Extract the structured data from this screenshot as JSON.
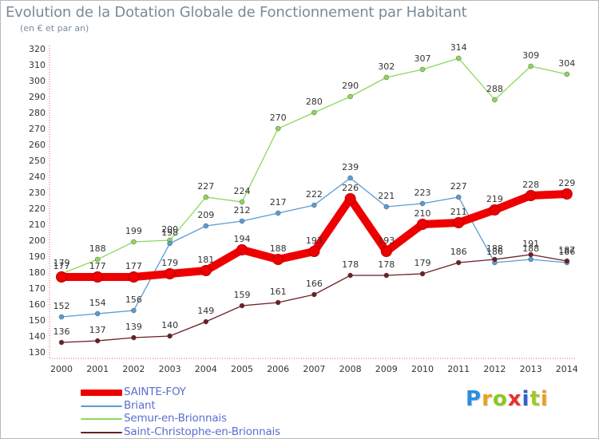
{
  "header": {
    "title": "Evolution de la Dotation Globale de Fonctionnement par Habitant",
    "subtitle": "(en € et par an)"
  },
  "brand": {
    "text": "Proxiti",
    "colors": [
      "#2a8ee0",
      "#e8a020",
      "#8cc820",
      "#e83030",
      "#3060d0",
      "#a0c828",
      "#e8a020"
    ]
  },
  "chart_data": {
    "type": "line",
    "title": "Evolution de la Dotation Globale de Fonctionnement par Habitant",
    "subtitle": "(en € et par an)",
    "xlabel": "",
    "ylabel": "",
    "x": [
      "2000",
      "2001",
      "2002",
      "2003",
      "2004",
      "2005",
      "2006",
      "2007",
      "2008",
      "2009",
      "2010",
      "2011",
      "2012",
      "2013",
      "2014"
    ],
    "ylim": [
      130,
      320
    ],
    "yticks": [
      130,
      140,
      150,
      160,
      170,
      180,
      190,
      200,
      210,
      220,
      230,
      240,
      250,
      260,
      270,
      280,
      290,
      300,
      310,
      320
    ],
    "grid": false,
    "legend_position": "bottom-left",
    "series": [
      {
        "name": "Semur-en-Brionnais",
        "color": "#8cd85a",
        "emphasis": false,
        "values": [
          179,
          188,
          199,
          200,
          227,
          224,
          270,
          280,
          290,
          302,
          307,
          314,
          288,
          309,
          304
        ]
      },
      {
        "name": "Briant",
        "color": "#5b9bd5",
        "emphasis": false,
        "values": [
          152,
          154,
          156,
          198,
          209,
          212,
          217,
          222,
          239,
          221,
          223,
          227,
          186,
          188,
          186
        ]
      },
      {
        "name": "Saint-Christophe-en-Brionnais",
        "color": "#6b1f24",
        "emphasis": false,
        "values": [
          136,
          137,
          139,
          140,
          149,
          159,
          161,
          166,
          178,
          178,
          179,
          186,
          188,
          191,
          187
        ]
      },
      {
        "name": "SAINTE-FOY",
        "color": "#ee0000",
        "emphasis": true,
        "values": [
          177,
          177,
          177,
          179,
          181,
          194,
          188,
          193,
          226,
          193,
          210,
          211,
          219,
          228,
          229
        ]
      }
    ],
    "legend_order": [
      "SAINTE-FOY",
      "Briant",
      "Semur-en-Brionnais",
      "Saint-Christophe-en-Brionnais"
    ]
  }
}
